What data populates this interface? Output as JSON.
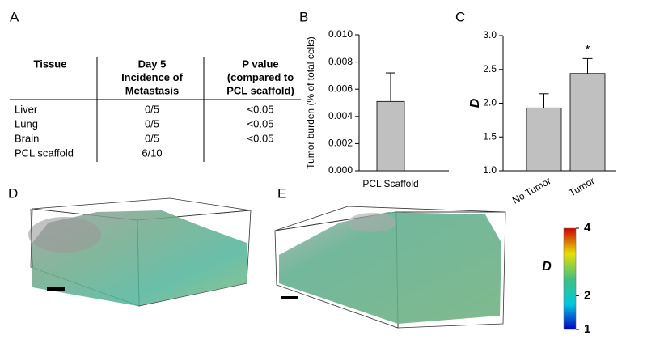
{
  "panels": [
    "A",
    "B",
    "C",
    "D",
    "E"
  ],
  "table": {
    "header": [
      [
        "Tissue"
      ],
      [
        "Day 5",
        "Incidence of",
        "Metastasis"
      ],
      [
        "P value",
        "(compared to",
        "PCL scaffold)"
      ]
    ],
    "rows": [
      [
        "Liver",
        "0/5",
        "<0.05"
      ],
      [
        "Lung",
        "0/5",
        "<0.05"
      ],
      [
        "Brain",
        "0/5",
        "<0.05"
      ],
      [
        "PCL scaffold",
        "6/10"
      ]
    ]
  },
  "chart_data": [
    {
      "type": "bar",
      "ylabel": "Tumor burden (% of total cells)",
      "categories": [
        "PCL Scaffold"
      ],
      "values": [
        0.0051
      ],
      "errors": [
        0.0021
      ],
      "color": "#c0c0c0",
      "ylim": [
        0,
        0.01
      ],
      "yticks": [
        {
          "value": 0,
          "label": "0.000"
        },
        {
          "value": 0.002,
          "label": "0.002"
        },
        {
          "value": 0.004,
          "label": "0.004"
        },
        {
          "value": 0.006,
          "label": "0.006"
        },
        {
          "value": 0.008,
          "label": "0.008"
        },
        {
          "value": 0.01,
          "label": "0.010"
        }
      ]
    },
    {
      "type": "bar",
      "ylabel": "D",
      "categories": [
        "No Tumor",
        "Tumor"
      ],
      "values": [
        1.93,
        2.44
      ],
      "errors": [
        0.21,
        0.22
      ],
      "color": "#c0c0c0",
      "annotations": [
        {
          "text": "*",
          "category": 1
        }
      ],
      "ylim": [
        1,
        3
      ],
      "yticks": [
        {
          "value": 1,
          "label": "1.0"
        },
        {
          "value": 1.5,
          "label": "1.5"
        },
        {
          "value": 2,
          "label": "2.0"
        },
        {
          "value": 2.5,
          "label": "2.5"
        },
        {
          "value": 3,
          "label": "3.0"
        }
      ]
    }
  ],
  "colorbar": {
    "label": "D",
    "lim": [
      1,
      4
    ],
    "ticks": [
      4,
      2,
      1
    ],
    "colors": [
      "#0000c8",
      "#00c8e0",
      "#40c080",
      "#e8e000",
      "#d00000"
    ]
  }
}
